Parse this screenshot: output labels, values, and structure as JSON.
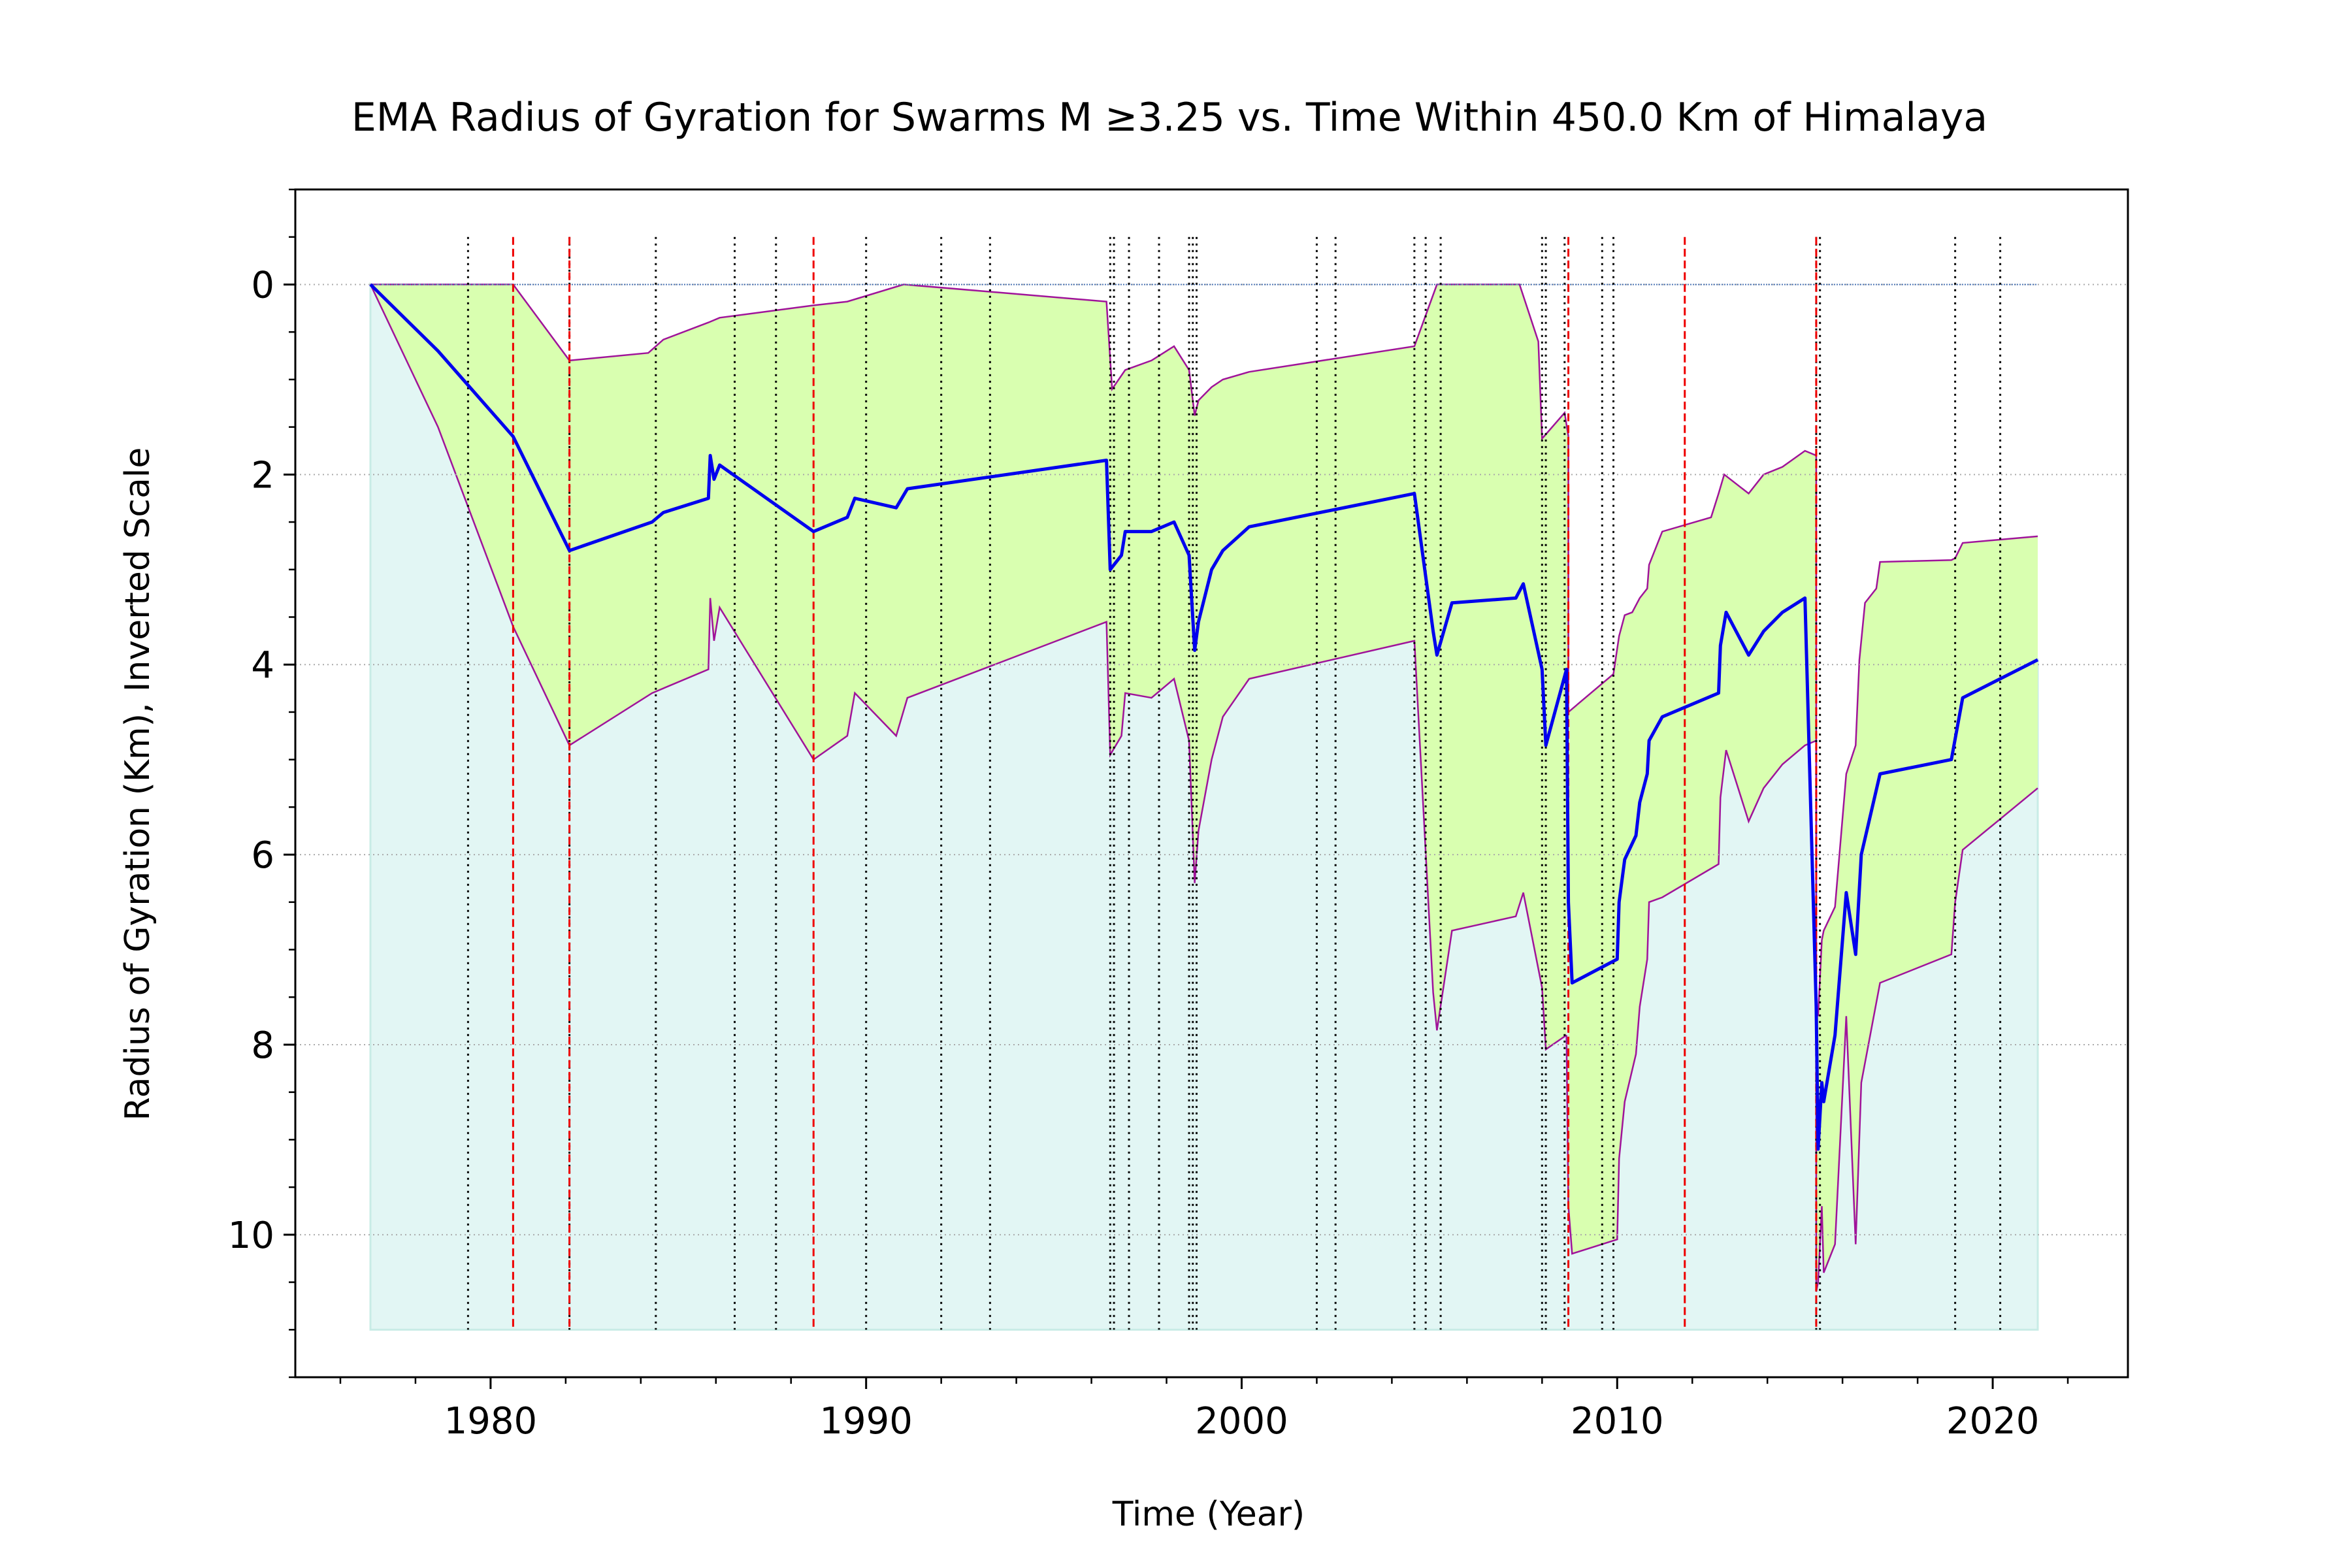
{
  "chart_data": {
    "type": "line",
    "title": "EMA Radius of Gyration for Swarms M $\\geq$3.25 vs. Time Within 450.0 Km of Himalaya",
    "title_display": "EMA Radius of Gyration for Swarms M ≥3.25 vs. Time Within 450.0 Km of Himalaya",
    "xlabel": "Time (Year)",
    "ylabel": "Radius of Gyration (Km), Inverted Scale",
    "xlim": [
      1974.8,
      2023.6
    ],
    "ylim": [
      11.5,
      -1.0
    ],
    "y_inverted": true,
    "x_ticks": [
      1980,
      1990,
      2000,
      2010,
      2020
    ],
    "x_tick_labels": [
      "1980",
      "1990",
      "2000",
      "2010",
      "2020"
    ],
    "x_minor_step": 2,
    "y_ticks": [
      0,
      2,
      4,
      6,
      8,
      10
    ],
    "y_tick_labels": [
      "0",
      "2",
      "4",
      "6",
      "8",
      "10"
    ],
    "y_minor_step": 0.5,
    "grid": "horizontal dotted",
    "colors": {
      "ema": "#0000ee",
      "band_fill": "#d9ffb0",
      "band_edge": "#a0139a",
      "background_fill": "#e2f6f4",
      "zero_line": "#4a74b4",
      "red_markers": "#ee0000",
      "black_markers": "#000000",
      "grid": "#aaaaaa"
    },
    "background_fill_depth": 11,
    "red_dashed_lines": [
      1980.6,
      1982.1,
      1988.6,
      2008.7,
      2011.8,
      2015.3
    ],
    "black_dotted_lines": [
      1979.4,
      1982.1,
      1984.4,
      1986.5,
      1987.6,
      1990.0,
      1992.0,
      1993.3,
      1996.5,
      1996.6,
      1997.0,
      1997.8,
      1998.6,
      1998.7,
      1998.8,
      2002.0,
      2002.5,
      2004.6,
      2004.9,
      2005.3,
      2008.0,
      2008.1,
      2008.6,
      2009.6,
      2009.9,
      2015.3,
      2015.4,
      2019.0,
      2020.2
    ],
    "series": [
      {
        "role": "ema",
        "x": [
          1976.8,
          1978.6,
          1980.6,
          1982.1,
          1984.3,
          1984.6,
          1985.8,
          1985.85,
          1985.95,
          1986.1,
          1988.6,
          1989.5,
          1989.7,
          1990.8,
          1991.1,
          1996.4,
          1996.5,
          1996.8,
          1996.9,
          1997.6,
          1998.2,
          1998.6,
          1998.75,
          1998.85,
          1999.2,
          1999.5,
          2000.2,
          2004.6,
          2005.1,
          2005.2,
          2005.6,
          2007.3,
          2007.5,
          2008.0,
          2008.1,
          2008.65,
          2008.7,
          2008.8,
          2010.0,
          2010.05,
          2010.2,
          2010.5,
          2010.6,
          2010.8,
          2010.85,
          2011.2,
          2012.7,
          2012.75,
          2012.9,
          2013.5,
          2013.9,
          2014.4,
          2015.0,
          2015.3,
          2015.35,
          2015.45,
          2015.5,
          2015.8,
          2016.1,
          2016.35,
          2016.5,
          2017.0,
          2018.9,
          2019.2,
          2021.2
        ],
        "y": [
          0.0,
          0.7,
          1.6,
          2.8,
          2.5,
          2.4,
          2.25,
          1.8,
          2.05,
          1.9,
          2.6,
          2.45,
          2.25,
          2.35,
          2.15,
          1.85,
          3.0,
          2.85,
          2.6,
          2.6,
          2.5,
          2.85,
          3.85,
          3.55,
          3.0,
          2.8,
          2.55,
          2.2,
          3.65,
          3.9,
          3.35,
          3.3,
          3.15,
          4.05,
          4.85,
          4.05,
          6.5,
          7.35,
          7.1,
          6.5,
          6.05,
          5.8,
          5.45,
          5.15,
          4.8,
          4.55,
          4.3,
          3.8,
          3.45,
          3.9,
          3.65,
          3.45,
          3.3,
          7.6,
          9.1,
          8.4,
          8.6,
          7.9,
          6.4,
          7.05,
          6.0,
          5.15,
          5.0,
          4.35,
          3.95
        ]
      },
      {
        "role": "band-upper",
        "x": [
          1976.8,
          1980.6,
          1982.1,
          1984.2,
          1984.6,
          1985.8,
          1986.1,
          1988.6,
          1989.5,
          1991.0,
          1996.4,
          1996.55,
          1996.9,
          1997.6,
          1998.2,
          1998.6,
          1998.75,
          1998.85,
          1999.2,
          1999.5,
          2000.2,
          2004.6,
          2005.2,
          2007.4,
          2007.9,
          2008.0,
          2008.05,
          2008.6,
          2008.7
        ],
        "y": [
          0.0,
          0.0,
          0.8,
          0.72,
          0.58,
          0.4,
          0.35,
          0.22,
          0.18,
          0.0,
          0.18,
          1.1,
          0.9,
          0.8,
          0.65,
          0.9,
          1.38,
          1.22,
          1.08,
          1.0,
          0.92,
          0.65,
          0.0,
          0.0,
          0.6,
          1.62,
          1.6,
          1.35,
          1.6
        ]
      },
      {
        "role": "band-lower",
        "x": [
          1976.8,
          1978.6,
          1980.6,
          1982.1,
          1984.3,
          1985.8,
          1985.85,
          1985.95,
          1986.1,
          1988.6,
          1989.5,
          1989.7,
          1990.8,
          1991.1,
          1996.4,
          1996.5,
          1996.8,
          1996.9,
          1997.6,
          1998.2,
          1998.6,
          1998.75,
          1998.85,
          1999.2,
          1999.5,
          2000.2,
          2004.6,
          2005.1,
          2005.2,
          2005.6,
          2007.3,
          2007.5,
          2008.0,
          2008.1,
          2008.65
        ],
        "y": [
          0.0,
          1.5,
          3.6,
          4.85,
          4.3,
          4.05,
          3.3,
          3.75,
          3.4,
          5.0,
          4.75,
          4.3,
          4.75,
          4.35,
          3.55,
          4.95,
          4.75,
          4.3,
          4.35,
          4.15,
          4.8,
          6.3,
          5.75,
          5.0,
          4.55,
          4.15,
          3.75,
          7.45,
          7.85,
          6.8,
          6.65,
          6.4,
          7.4,
          8.05,
          7.9
        ]
      },
      {
        "role": "band-2-upper",
        "x": [
          2008.7,
          2009.9,
          2010.05,
          2010.2,
          2010.4,
          2010.6,
          2010.8,
          2010.85,
          2011.2,
          2012.5,
          2012.7,
          2012.85,
          2013.5,
          2013.9,
          2014.4,
          2015.0,
          2015.3
        ],
        "y": [
          4.5,
          4.1,
          3.7,
          3.48,
          3.45,
          3.3,
          3.2,
          2.95,
          2.6,
          2.45,
          2.2,
          2.0,
          2.2,
          2.0,
          1.92,
          1.75,
          1.8
        ]
      },
      {
        "role": "band-2-lower",
        "x": [
          2008.7,
          2008.8,
          2010.0,
          2010.05,
          2010.2,
          2010.5,
          2010.6,
          2010.8,
          2010.85,
          2011.2,
          2012.7,
          2012.75,
          2012.9,
          2013.5,
          2013.9,
          2014.4,
          2015.0,
          2015.3
        ],
        "y": [
          9.7,
          10.2,
          10.05,
          9.2,
          8.6,
          8.1,
          7.6,
          7.1,
          6.5,
          6.45,
          6.1,
          5.4,
          4.9,
          5.65,
          5.3,
          5.05,
          4.85,
          4.8
        ]
      },
      {
        "role": "band-3-upper",
        "x": [
          2015.3,
          2015.35,
          2015.45,
          2015.5,
          2015.8,
          2016.1,
          2016.35,
          2016.45,
          2016.6,
          2016.9,
          2017.0,
          2018.9,
          2019.0,
          2019.2,
          2021.2
        ],
        "y": [
          7.6,
          7.7,
          6.9,
          6.8,
          6.55,
          5.15,
          4.85,
          3.95,
          3.35,
          3.2,
          2.92,
          2.9,
          2.88,
          2.72,
          2.65
        ]
      },
      {
        "role": "band-3-lower",
        "x": [
          2015.3,
          2015.35,
          2015.45,
          2015.5,
          2015.8,
          2016.1,
          2016.35,
          2016.5,
          2017.0,
          2018.9,
          2019.0,
          2019.2,
          2021.2
        ],
        "y": [
          10.6,
          10.5,
          9.7,
          10.4,
          10.1,
          7.7,
          10.1,
          8.4,
          7.35,
          7.05,
          6.5,
          5.95,
          5.3
        ]
      }
    ]
  }
}
